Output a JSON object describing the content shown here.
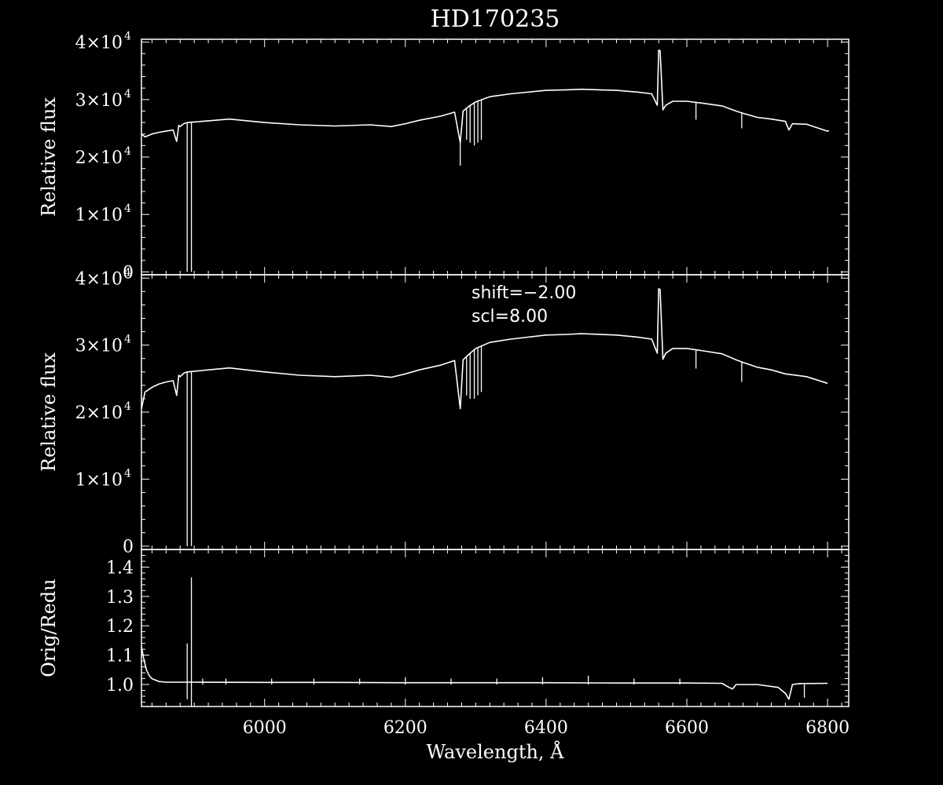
{
  "chart_data": [
    {
      "type": "line",
      "title": "HD170235",
      "ylabel": "Relative flux",
      "xlim": [
        5825,
        6830
      ],
      "ylim": [
        -500,
        40500
      ],
      "xticks": [
        6000,
        6200,
        6400,
        6600,
        6800
      ],
      "yticks": [
        {
          "value": 0,
          "label": "0"
        },
        {
          "value": 10000,
          "label": "1×10",
          "exp": "4"
        },
        {
          "value": 20000,
          "label": "2×10",
          "exp": "4"
        },
        {
          "value": 30000,
          "label": "3×10",
          "exp": "4"
        },
        {
          "value": 40000,
          "label": "4×10",
          "exp": "4"
        }
      ],
      "series": [
        {
          "x": [
            5825,
            5830,
            5840,
            5850,
            5860,
            5870,
            5875,
            5878,
            5880,
            5885,
            5890,
            5900,
            5920,
            5950,
            6000,
            6050,
            6100,
            6150,
            6180,
            6200,
            6220,
            6250,
            6270,
            6278,
            6282,
            6290,
            6300,
            6320,
            6350,
            6400,
            6430,
            6450,
            6500,
            6530,
            6550,
            6558,
            6560,
            6562,
            6566,
            6570,
            6580,
            6600,
            6620,
            6650,
            6670,
            6680,
            6700,
            6720,
            6740,
            6745,
            6750,
            6770,
            6800,
            6802
          ],
          "y": [
            24000,
            23500,
            24000,
            24300,
            24500,
            24700,
            22700,
            25500,
            25300,
            25800,
            26000,
            26100,
            26300,
            26600,
            26000,
            25600,
            25400,
            25600,
            25300,
            25800,
            26400,
            27100,
            27800,
            22500,
            28000,
            28800,
            29600,
            30500,
            31000,
            31600,
            31700,
            31800,
            31600,
            31300,
            31000,
            29000,
            38600,
            38500,
            28200,
            29000,
            29700,
            29700,
            29400,
            28900,
            28000,
            27600,
            26900,
            26600,
            26200,
            24700,
            25800,
            25700,
            24500,
            24600
          ],
          "dips": [
            {
              "x": 5890,
              "y": 0
            },
            {
              "x": 5896,
              "y": 0
            },
            {
              "x": 6278,
              "y": 18500
            },
            {
              "x": 6287,
              "y": 23000
            },
            {
              "x": 6292,
              "y": 22500
            },
            {
              "x": 6298,
              "y": 22000
            },
            {
              "x": 6303,
              "y": 22500
            },
            {
              "x": 6308,
              "y": 23000
            },
            {
              "x": 6613,
              "y": 26500
            },
            {
              "x": 6678,
              "y": 25000
            }
          ]
        }
      ]
    },
    {
      "type": "line",
      "ylabel": "Relative flux",
      "xlim": [
        5825,
        6830
      ],
      "ylim": [
        -500,
        40500
      ],
      "xticks": [
        6000,
        6200,
        6400,
        6600,
        6800
      ],
      "yticks": [
        {
          "value": 0,
          "label": "0"
        },
        {
          "value": 10000,
          "label": "1×10",
          "exp": "4"
        },
        {
          "value": 20000,
          "label": "2×10",
          "exp": "4"
        },
        {
          "value": 30000,
          "label": "3×10",
          "exp": "4"
        },
        {
          "value": 40000,
          "label": "4×10",
          "exp": "4"
        }
      ],
      "annotations": [
        "shift=−2.00",
        "scl=8.00"
      ],
      "series": [
        {
          "x": [
            5825,
            5830,
            5840,
            5850,
            5860,
            5870,
            5875,
            5878,
            5880,
            5885,
            5890,
            5900,
            5920,
            5950,
            6000,
            6050,
            6100,
            6150,
            6180,
            6200,
            6220,
            6250,
            6270,
            6278,
            6282,
            6290,
            6300,
            6320,
            6350,
            6400,
            6430,
            6450,
            6500,
            6530,
            6550,
            6558,
            6560,
            6562,
            6566,
            6570,
            6580,
            6600,
            6620,
            6650,
            6670,
            6680,
            6700,
            6720,
            6740,
            6770,
            6800
          ],
          "y": [
            20500,
            23000,
            23700,
            24200,
            24500,
            24700,
            22500,
            25500,
            25300,
            25800,
            26000,
            26100,
            26300,
            26600,
            26000,
            25500,
            25300,
            25500,
            25200,
            25700,
            26300,
            27000,
            27700,
            20500,
            27800,
            28600,
            29500,
            30400,
            30900,
            31500,
            31600,
            31700,
            31500,
            31200,
            30900,
            28800,
            38400,
            38300,
            27900,
            28800,
            29500,
            29500,
            29200,
            28700,
            27800,
            27400,
            26700,
            26300,
            25700,
            25300,
            24300
          ],
          "dips": [
            {
              "x": 5890,
              "y": 0
            },
            {
              "x": 5896,
              "y": 0
            },
            {
              "x": 6278,
              "y": 20500
            },
            {
              "x": 6287,
              "y": 22500
            },
            {
              "x": 6292,
              "y": 22000
            },
            {
              "x": 6298,
              "y": 22000
            },
            {
              "x": 6303,
              "y": 22500
            },
            {
              "x": 6308,
              "y": 23000
            },
            {
              "x": 6613,
              "y": 26500
            },
            {
              "x": 6678,
              "y": 24500
            }
          ]
        }
      ]
    },
    {
      "type": "line",
      "ylabel": "Orig/Redu",
      "xlabel": "Wavelength, Å",
      "xlim": [
        5825,
        6830
      ],
      "ylim": [
        0.925,
        1.46
      ],
      "xticks": [
        6000,
        6200,
        6400,
        6600,
        6800
      ],
      "yticks": [
        {
          "value": 1.0,
          "label": "1.0"
        },
        {
          "value": 1.1,
          "label": "1.1"
        },
        {
          "value": 1.2,
          "label": "1.2"
        },
        {
          "value": 1.3,
          "label": "1.3"
        },
        {
          "value": 1.4,
          "label": "1.4"
        }
      ],
      "series": [
        {
          "x": [
            5825,
            5828,
            5832,
            5836,
            5840,
            5845,
            5850,
            5860,
            5880,
            5900,
            6000,
            6100,
            6200,
            6300,
            6400,
            6500,
            6600,
            6650,
            6660,
            6665,
            6670,
            6700,
            6730,
            6740,
            6745,
            6750,
            6760,
            6800
          ],
          "y": [
            1.13,
            1.09,
            1.05,
            1.03,
            1.02,
            1.015,
            1.01,
            1.008,
            1.008,
            1.008,
            1.007,
            1.007,
            1.006,
            1.006,
            1.006,
            1.005,
            1.005,
            1.004,
            0.99,
            0.985,
            1.0,
            1.0,
            0.99,
            0.97,
            0.95,
            1.0,
            1.003,
            1.004
          ],
          "spikes": [
            {
              "x": 5890,
              "y": 1.14,
              "base": 0.95
            },
            {
              "x": 5896,
              "y": 1.365,
              "base": 0.925
            },
            {
              "x": 5912,
              "y": 1.02,
              "base": 1.0
            },
            {
              "x": 5945,
              "y": 1.02,
              "base": 1.0
            },
            {
              "x": 6010,
              "y": 1.02,
              "base": 1.0
            },
            {
              "x": 6070,
              "y": 1.02,
              "base": 1.0
            },
            {
              "x": 6135,
              "y": 1.02,
              "base": 1.0
            },
            {
              "x": 6200,
              "y": 1.025,
              "base": 1.0
            },
            {
              "x": 6265,
              "y": 1.02,
              "base": 1.0
            },
            {
              "x": 6330,
              "y": 1.02,
              "base": 1.0
            },
            {
              "x": 6395,
              "y": 1.025,
              "base": 1.0
            },
            {
              "x": 6460,
              "y": 1.03,
              "base": 1.0
            },
            {
              "x": 6525,
              "y": 1.02,
              "base": 1.0
            },
            {
              "x": 6590,
              "y": 1.02,
              "base": 1.0
            },
            {
              "x": 6767,
              "y": 1.0,
              "base": 0.955
            }
          ]
        }
      ]
    }
  ]
}
